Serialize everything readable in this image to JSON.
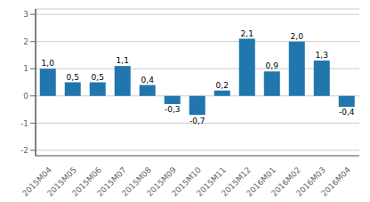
{
  "chart_data": {
    "type": "bar",
    "categories": [
      "2015M04",
      "2015M05",
      "2015M06",
      "2015M07",
      "2015M08",
      "2015M09",
      "2015M10",
      "2015M11",
      "2015M12",
      "2016M01",
      "2016M02",
      "2016M03",
      "2016M04"
    ],
    "values": [
      1.0,
      0.5,
      0.5,
      1.1,
      0.4,
      -0.3,
      -0.7,
      0.2,
      2.1,
      0.9,
      2.0,
      1.3,
      -0.4
    ],
    "value_labels": [
      "1,0",
      "0,5",
      "0,5",
      "1,1",
      "0,4",
      "-0,3",
      "-0,7",
      "0,2",
      "2,1",
      "0,9",
      "2,0",
      "1,3",
      "-0,4"
    ],
    "color": "#2176ae",
    "ylim": [
      -2.2,
      3.2
    ],
    "yticks": [
      -2,
      -1,
      0,
      1,
      2,
      3
    ],
    "grid": true,
    "data_labels": true
  }
}
